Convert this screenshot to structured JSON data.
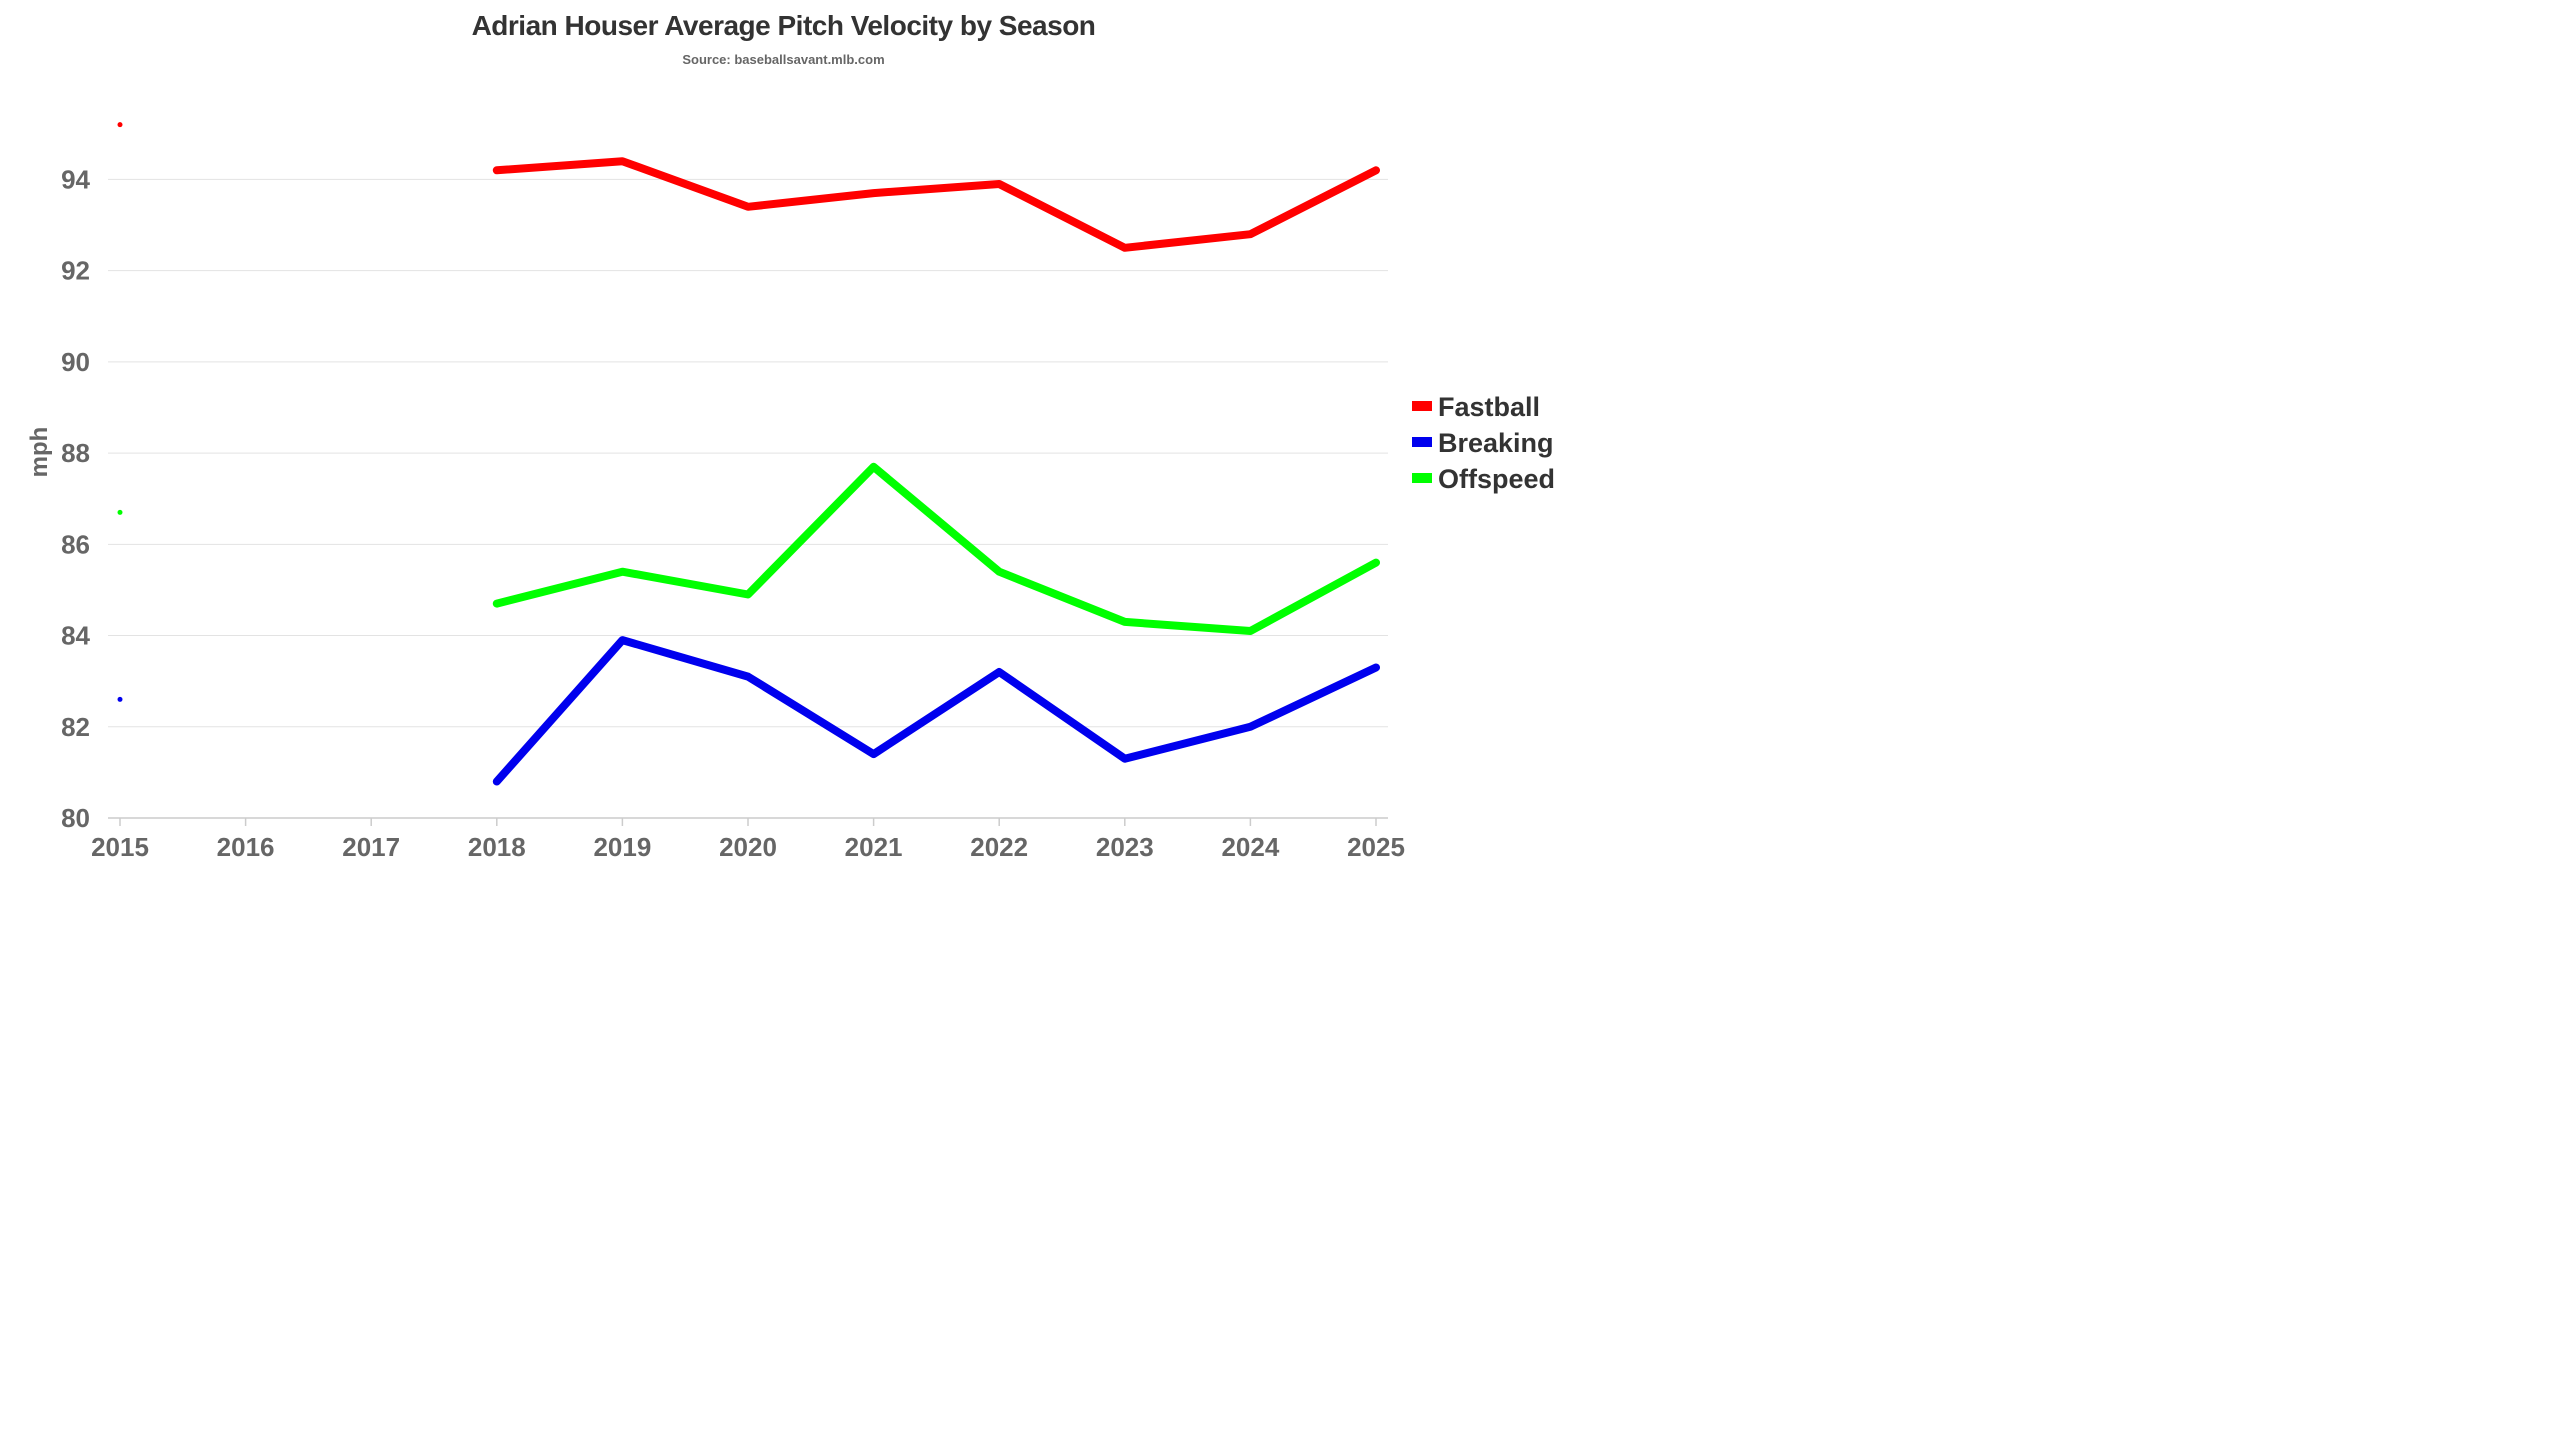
{
  "chart_data": {
    "type": "line",
    "title": "Adrian Houser Average Pitch Velocity by Season",
    "subtitle": "Source: baseballsavant.mlb.com",
    "xlabel": "",
    "ylabel": "mph",
    "x": [
      2015,
      2016,
      2017,
      2018,
      2019,
      2020,
      2021,
      2022,
      2023,
      2024,
      2025
    ],
    "x_tick_labels": [
      "2015",
      "2016",
      "2017",
      "2018",
      "2019",
      "2020",
      "2021",
      "2022",
      "2023",
      "2024",
      "2025"
    ],
    "ylim": [
      80,
      95.5
    ],
    "y_ticks": [
      80,
      82,
      84,
      86,
      88,
      90,
      92,
      94
    ],
    "y_tick_labels": [
      "80",
      "82",
      "84",
      "86",
      "88",
      "90",
      "92",
      "94"
    ],
    "grid": "horizontal",
    "legend_position": "right",
    "series": [
      {
        "name": "Fastball",
        "color": "#ff0000",
        "values": [
          95.2,
          null,
          null,
          94.2,
          94.4,
          93.4,
          93.7,
          93.9,
          92.5,
          92.8,
          94.2
        ]
      },
      {
        "name": "Breaking",
        "color": "#0000ee",
        "values": [
          82.6,
          null,
          null,
          80.8,
          83.9,
          83.1,
          81.4,
          83.2,
          81.3,
          82.0,
          83.3
        ]
      },
      {
        "name": "Offspeed",
        "color": "#00ff00",
        "values": [
          86.7,
          null,
          null,
          84.7,
          85.4,
          84.9,
          87.7,
          85.4,
          84.3,
          84.1,
          85.6
        ]
      }
    ]
  }
}
